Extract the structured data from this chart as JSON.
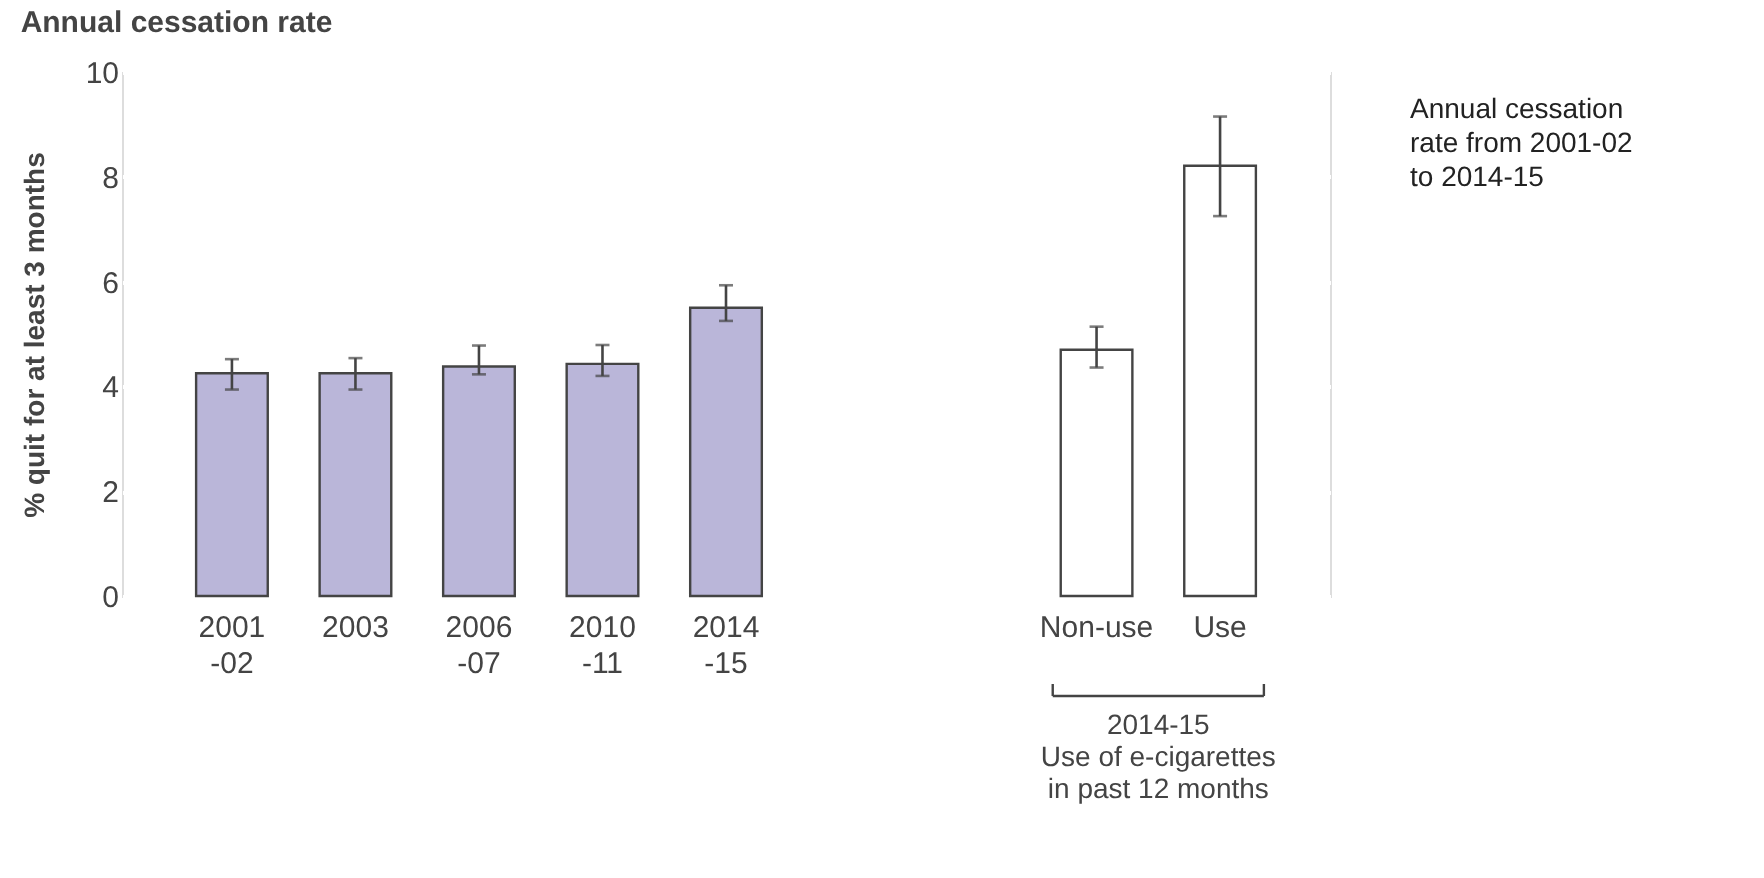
{
  "chart_data": {
    "type": "bar",
    "title": "Annual cessation rate",
    "ylabel": "% quit for at least 3 months",
    "categories": [
      "2001\n-02",
      "2003",
      "2006\n-07",
      "2010\n-11",
      "2014\n-15",
      "Non-use",
      "Use"
    ],
    "values": [
      4.25,
      4.25,
      4.38,
      4.43,
      5.5,
      4.7,
      8.21
    ],
    "colors": [
      "#bab6d9",
      "#bab6d9",
      "#bab6d9",
      "#bab6d9",
      "#bab6d9",
      "#ffffff",
      "#ffffff"
    ],
    "errors": [
      [
        3.94,
        4.52
      ],
      [
        3.94,
        4.54
      ],
      [
        4.23,
        4.78
      ],
      [
        4.2,
        4.79
      ],
      [
        5.25,
        5.93
      ],
      [
        4.36,
        5.14
      ],
      [
        7.25,
        9.15
      ]
    ],
    "ylim": [
      0,
      10
    ],
    "yticks": [
      0,
      2,
      4,
      6,
      8,
      10
    ],
    "grid": "y",
    "annotations": [
      "Annual cessation\nrate from 2001-02\nto 2014-15",
      "2014-15\nUse of e-cigarettes\nin past 12 months"
    ]
  }
}
